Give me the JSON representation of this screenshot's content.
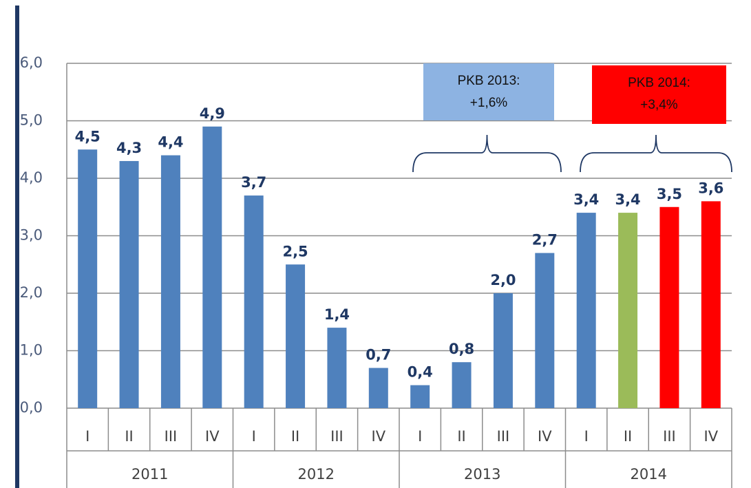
{
  "chart_data": {
    "type": "bar",
    "categories": [
      "I",
      "II",
      "III",
      "IV",
      "I",
      "II",
      "III",
      "IV",
      "I",
      "II",
      "III",
      "IV",
      "I",
      "II",
      "III",
      "IV"
    ],
    "groups": [
      "2011",
      "2012",
      "2013",
      "2014"
    ],
    "values": [
      4.5,
      4.3,
      4.4,
      4.9,
      3.7,
      2.5,
      1.4,
      0.7,
      0.4,
      0.8,
      2.0,
      2.7,
      3.4,
      3.4,
      3.5,
      3.6
    ],
    "value_labels": [
      "4,5",
      "4,3",
      "4,4",
      "4,9",
      "3,7",
      "2,5",
      "1,4",
      "0,7",
      "0,4",
      "0,8",
      "2,0",
      "2,7",
      "3,4",
      "3,4",
      "3,5",
      "3,6"
    ],
    "colors": [
      "#4f81bd",
      "#4f81bd",
      "#4f81bd",
      "#4f81bd",
      "#4f81bd",
      "#4f81bd",
      "#4f81bd",
      "#4f81bd",
      "#4f81bd",
      "#4f81bd",
      "#4f81bd",
      "#4f81bd",
      "#4f81bd",
      "#9bbb59",
      "#ff0000",
      "#ff0000"
    ],
    "ylim": [
      0,
      6
    ],
    "yticks": [
      {
        "value": 0,
        "label": "0,0"
      },
      {
        "value": 1,
        "label": "1,0"
      },
      {
        "value": 2,
        "label": "2,0"
      },
      {
        "value": 3,
        "label": "3,0"
      },
      {
        "value": 4,
        "label": "4,0"
      },
      {
        "value": 5,
        "label": "5,0"
      },
      {
        "value": 6,
        "label": "6,0"
      }
    ],
    "grid": true,
    "annotations": [
      {
        "lines": [
          "PKB 2013:",
          "+1,6%"
        ],
        "color": "#8db3e2"
      },
      {
        "lines": [
          "PKB 2014:",
          "+3,4%"
        ],
        "color": "#ff0000"
      }
    ]
  }
}
